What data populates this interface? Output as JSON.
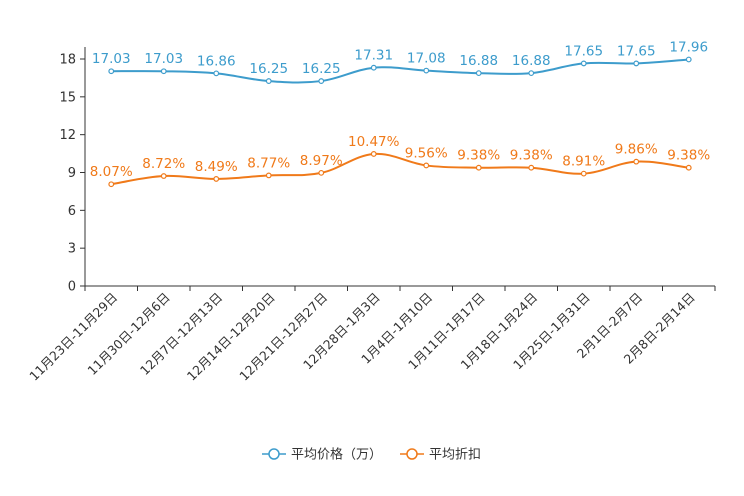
{
  "chart_data": {
    "type": "line",
    "title": "",
    "xlabel": "",
    "ylabel": "",
    "ylim": [
      0,
      18
    ],
    "yticks": [
      0,
      3,
      6,
      9,
      12,
      15,
      18
    ],
    "grid": false,
    "legend_position": "bottom-center",
    "categories": [
      "11月23日-11月29日",
      "11月30日-12月6日",
      "12月7日-12月13日",
      "12月14日-12月20日",
      "12月21日-12月27日",
      "12月28日-1月3日",
      "1月4日-1月10日",
      "1月11日-1月17日",
      "1月18日-1月24日",
      "1月25日-1月31日",
      "2月1日-2月7日",
      "2月8日-2月14日"
    ],
    "series": [
      {
        "name": "平均价格（万）",
        "color": "#3d9ccc",
        "values": [
          17.03,
          17.03,
          16.86,
          16.25,
          16.25,
          17.31,
          17.08,
          16.88,
          16.88,
          17.65,
          17.65,
          17.96
        ],
        "labels": [
          "17.03",
          "17.03",
          "16.86",
          "16.25",
          "16.25",
          "17.31",
          "17.08",
          "16.88",
          "16.88",
          "17.65",
          "17.65",
          "17.96"
        ]
      },
      {
        "name": "平均折扣",
        "color": "#f07a1a",
        "values": [
          8.07,
          8.72,
          8.49,
          8.77,
          8.97,
          10.47,
          9.56,
          9.38,
          9.38,
          8.91,
          9.86,
          9.38
        ],
        "labels": [
          "8.07%",
          "8.72%",
          "8.49%",
          "8.77%",
          "8.97%",
          "10.47%",
          "9.56%",
          "9.38%",
          "9.38%",
          "8.91%",
          "9.86%",
          "9.38%"
        ]
      }
    ]
  }
}
